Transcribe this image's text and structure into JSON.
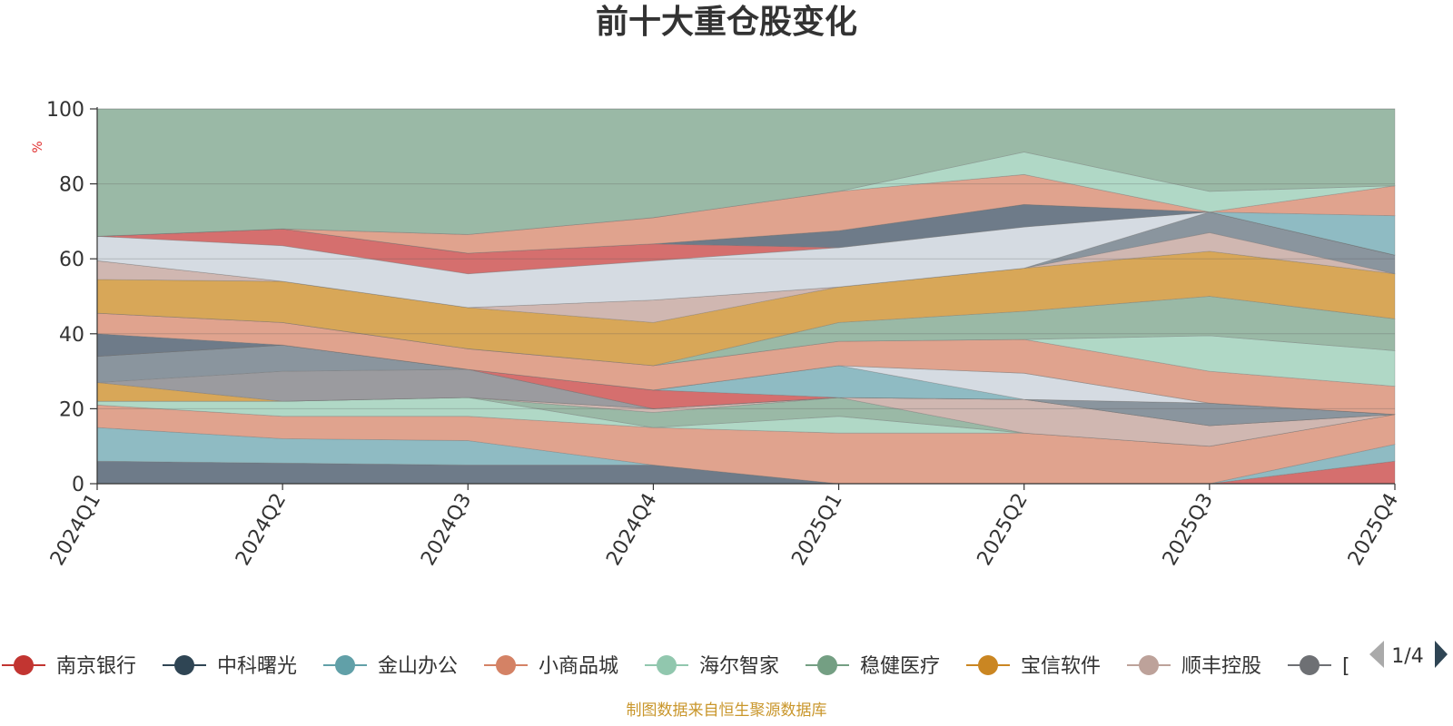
{
  "chart_data": {
    "type": "area",
    "title": "前十大重仓股变化",
    "ylabel": "%",
    "ylim": [
      0,
      100
    ],
    "y_ticks": [
      "0",
      "20",
      "40",
      "60",
      "80",
      "100"
    ],
    "categories": [
      "2024Q1",
      "2024Q2",
      "2024Q3",
      "2024Q4",
      "2025Q1",
      "2025Q2",
      "2025Q3",
      "2025Q4"
    ],
    "bands": [
      {
        "color": "#6e7b89",
        "lower": [
          0,
          0,
          0,
          0,
          0,
          0,
          0,
          0
        ],
        "upper": [
          6,
          5.5,
          5,
          5,
          0,
          0,
          0,
          0
        ]
      },
      {
        "color": "#d56f6e",
        "lower": [
          0,
          0,
          0,
          0,
          0,
          0,
          0,
          0
        ],
        "upper": [
          0,
          0,
          0,
          0,
          0,
          0,
          0,
          6
        ]
      },
      {
        "color": "#8fbbc3",
        "lower": [
          6,
          5.5,
          5,
          5,
          0,
          0,
          0,
          6
        ],
        "upper": [
          15,
          12,
          11.5,
          5,
          0,
          0,
          0,
          10.5
        ]
      },
      {
        "color": "#e0a38e",
        "lower": [
          15,
          12,
          11.5,
          5,
          0,
          0,
          0,
          10.5
        ],
        "upper": [
          21,
          18,
          18,
          15,
          13.5,
          13.5,
          10,
          18.5
        ]
      },
      {
        "color": "#b0d8c6",
        "lower": [
          21,
          18,
          18,
          15,
          13.5,
          13.5,
          10,
          18.5
        ],
        "upper": [
          22,
          22,
          23,
          15,
          18,
          13.5,
          10,
          18.5
        ]
      },
      {
        "color": "#9ab9a6",
        "lower": [
          22,
          22,
          23,
          15,
          18,
          13.5,
          10,
          18.5
        ],
        "upper": [
          22,
          22,
          23,
          19,
          23,
          13.5,
          10,
          18.5
        ]
      },
      {
        "color": "#d0b7b1",
        "lower": [
          22,
          22,
          23,
          19,
          23,
          13.5,
          10,
          18.5
        ],
        "upper": [
          22,
          22,
          23,
          20,
          23,
          22.5,
          15.5,
          18.5
        ]
      },
      {
        "color": "#d56f6e",
        "lower": [
          22,
          22,
          23,
          20,
          23,
          22.5,
          15.5,
          18.5
        ],
        "upper": [
          22,
          22,
          23,
          20,
          23,
          22.5,
          15.5,
          18.5
        ]
      },
      {
        "color": "#d8a758",
        "lower": [
          22,
          22,
          23,
          20,
          23,
          22.5,
          15.5,
          18.5
        ],
        "upper": [
          27,
          22,
          23,
          20,
          23,
          22.5,
          15.5,
          18.5
        ]
      },
      {
        "color": "#9b9b9f",
        "lower": [
          27,
          22,
          23,
          20,
          23,
          22.5,
          15.5,
          18.5
        ],
        "upper": [
          27,
          30,
          30.5,
          20,
          23,
          22.5,
          15.5,
          18.5
        ]
      },
      {
        "color": "#8a959e",
        "lower": [
          27,
          30,
          30.5,
          20,
          23,
          22.5,
          15.5,
          18.5
        ],
        "upper": [
          34,
          37,
          30.5,
          20,
          23,
          22.5,
          21.5,
          18.5
        ]
      },
      {
        "color": "#d56f6e",
        "lower": [
          34,
          37,
          30.5,
          20,
          23,
          22.5,
          21.5,
          18.5
        ],
        "upper": [
          34,
          37,
          30.5,
          25,
          23,
          22.5,
          21.5,
          18.5
        ]
      },
      {
        "color": "#8fbbc3",
        "lower": [
          34,
          37,
          30.5,
          25,
          23,
          22.5,
          21.5,
          18.5
        ],
        "upper": [
          34,
          37,
          30.5,
          25,
          31.5,
          22.5,
          21.5,
          18.5
        ]
      },
      {
        "color": "#d5dbe2",
        "lower": [
          34,
          37,
          30.5,
          25,
          31.5,
          22.5,
          21.5,
          18.5
        ],
        "upper": [
          34,
          37,
          30.5,
          25,
          31.5,
          29.5,
          21.5,
          18.5
        ]
      },
      {
        "color": "#6e7b89",
        "lower": [
          34,
          37,
          30.5,
          25,
          31.5,
          29.5,
          21.5,
          18.5
        ],
        "upper": [
          40,
          37,
          30.5,
          25,
          31.5,
          29.5,
          21.5,
          18.5
        ]
      },
      {
        "color": "#e0a38e",
        "lower": [
          40,
          37,
          30.5,
          25,
          31.5,
          29.5,
          21.5,
          18.5
        ],
        "upper": [
          45.5,
          43,
          36,
          31.5,
          38,
          38.5,
          30,
          26
        ]
      },
      {
        "color": "#b0d8c6",
        "lower": [
          45.5,
          43,
          36,
          31.5,
          38,
          38.5,
          30,
          26
        ],
        "upper": [
          45.5,
          43,
          36,
          31.5,
          38,
          38.5,
          39.5,
          35.5
        ]
      },
      {
        "color": "#9ab9a6",
        "lower": [
          45.5,
          43,
          36,
          31.5,
          38,
          38.5,
          39.5,
          35.5
        ],
        "upper": [
          45.5,
          43,
          36,
          31.5,
          43,
          46,
          50,
          44
        ]
      },
      {
        "color": "#d8a758",
        "lower": [
          45.5,
          43,
          36,
          31.5,
          43,
          46,
          50,
          44
        ],
        "upper": [
          54.5,
          54,
          47,
          43,
          52.5,
          57.5,
          62,
          56
        ]
      },
      {
        "color": "#d0b7b1",
        "lower": [
          54.5,
          54,
          47,
          43,
          52.5,
          57.5,
          62,
          56
        ],
        "upper": [
          59.5,
          54,
          47,
          49,
          52.5,
          57.5,
          67,
          56
        ]
      },
      {
        "color": "#8a959e",
        "lower": [
          59.5,
          54,
          47,
          49,
          52.5,
          57.5,
          67,
          56
        ],
        "upper": [
          59.5,
          54,
          47,
          49,
          52.5,
          57.5,
          72.5,
          61
        ]
      },
      {
        "color": "#d5dbe2",
        "lower": [
          59.5,
          54,
          47,
          49,
          52.5,
          57.5,
          72.5,
          61
        ],
        "upper": [
          66,
          63.5,
          56,
          59.5,
          63,
          68.5,
          72.5,
          61
        ]
      },
      {
        "color": "#d56f6e",
        "lower": [
          66,
          63.5,
          56,
          59.5,
          63,
          68.5,
          72.5,
          61
        ],
        "upper": [
          66,
          68,
          61.5,
          64,
          63,
          68.5,
          72.5,
          61
        ]
      },
      {
        "color": "#6e7b89",
        "lower": [
          66,
          68,
          61.5,
          64,
          63,
          68.5,
          72.5,
          61
        ],
        "upper": [
          66,
          68,
          61.5,
          64,
          67.5,
          74.5,
          72.5,
          61
        ]
      },
      {
        "color": "#8fbbc3",
        "lower": [
          66,
          68,
          61.5,
          64,
          67.5,
          74.5,
          72.5,
          61
        ],
        "upper": [
          66,
          68,
          61.5,
          64,
          67.5,
          74.5,
          72.5,
          71.5
        ]
      },
      {
        "color": "#e0a38e",
        "lower": [
          66,
          68,
          61.5,
          64,
          67.5,
          74.5,
          72.5,
          71.5
        ],
        "upper": [
          66,
          68,
          66.5,
          71,
          78,
          82.5,
          72.5,
          79.5
        ]
      },
      {
        "color": "#b0d8c6",
        "lower": [
          66,
          68,
          66.5,
          71,
          78,
          82.5,
          72.5,
          79.5
        ],
        "upper": [
          66,
          68,
          66.5,
          71,
          78,
          88.5,
          78,
          79.5
        ]
      },
      {
        "color": "#9ab9a6",
        "lower": [
          66,
          68,
          66.5,
          71,
          78,
          88.5,
          78,
          79.5
        ],
        "upper": [
          100,
          100,
          100,
          100,
          100,
          100,
          100,
          100
        ]
      }
    ],
    "legend": [
      {
        "label": "南京银行",
        "color": "#c23531"
      },
      {
        "label": "中科曙光",
        "color": "#2f4554"
      },
      {
        "label": "金山办公",
        "color": "#61a0a8"
      },
      {
        "label": "小商品城",
        "color": "#d48265"
      },
      {
        "label": "海尔智家",
        "color": "#91c7ae"
      },
      {
        "label": "稳健医疗",
        "color": "#749f83"
      },
      {
        "label": "宝信软件",
        "color": "#ca8622"
      },
      {
        "label": "顺丰控股",
        "color": "#bda29a"
      },
      {
        "label": "[",
        "color": "#6e7074"
      }
    ],
    "legend_position": "bottom",
    "legend_page": "1/4",
    "grid": true
  },
  "footer": "制图数据来自恒生聚源数据库"
}
